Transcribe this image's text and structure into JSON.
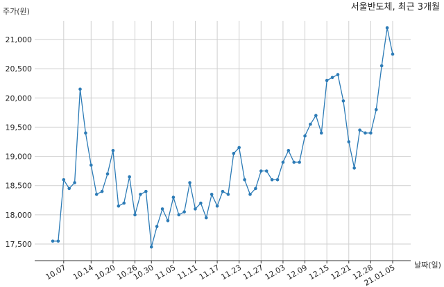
{
  "chart_data": {
    "type": "line",
    "title": "서울반도체, 최근 3개월",
    "ylabel": "주가(원)",
    "xlabel": "날짜(일)",
    "ylim": [
      17250,
      21400
    ],
    "yticks": [
      17500,
      18000,
      18500,
      19000,
      19500,
      20000,
      20500,
      21000
    ],
    "ytick_labels": [
      "17,500",
      "18,000",
      "18,500",
      "19,000",
      "19,500",
      "20,000",
      "20,500",
      "21,000"
    ],
    "xtick_labels": [
      "10.07",
      "10.14",
      "10.20",
      "10.26",
      "10.30",
      "11.05",
      "11.11",
      "11.17",
      "11.23",
      "11.27",
      "12.03",
      "12.09",
      "12.15",
      "12.21",
      "12.28",
      "21.01.05"
    ],
    "xtick_positions": [
      2,
      7,
      11,
      15,
      18,
      22,
      26,
      30,
      34,
      38,
      42,
      46,
      50,
      54,
      58,
      62
    ],
    "grid": true,
    "color": "#2c7bb6",
    "series": [
      {
        "name": "",
        "values": [
          17550,
          17550,
          18600,
          18450,
          18550,
          20150,
          19400,
          18850,
          18350,
          18400,
          18700,
          19100,
          18150,
          18200,
          18650,
          18000,
          18350,
          18400,
          17450,
          17800,
          18100,
          17900,
          18300,
          18000,
          18050,
          18550,
          18100,
          18200,
          17950,
          18350,
          18150,
          18400,
          18350,
          19050,
          19150,
          18600,
          18350,
          18450,
          18750,
          18750,
          18600,
          18600,
          18900,
          19100,
          18900,
          18900,
          19350,
          19550,
          19700,
          19400,
          20300,
          20350,
          20400,
          19950,
          19250,
          18800,
          19450,
          19400,
          19400,
          19800,
          20550,
          21200,
          20750
        ]
      }
    ]
  }
}
